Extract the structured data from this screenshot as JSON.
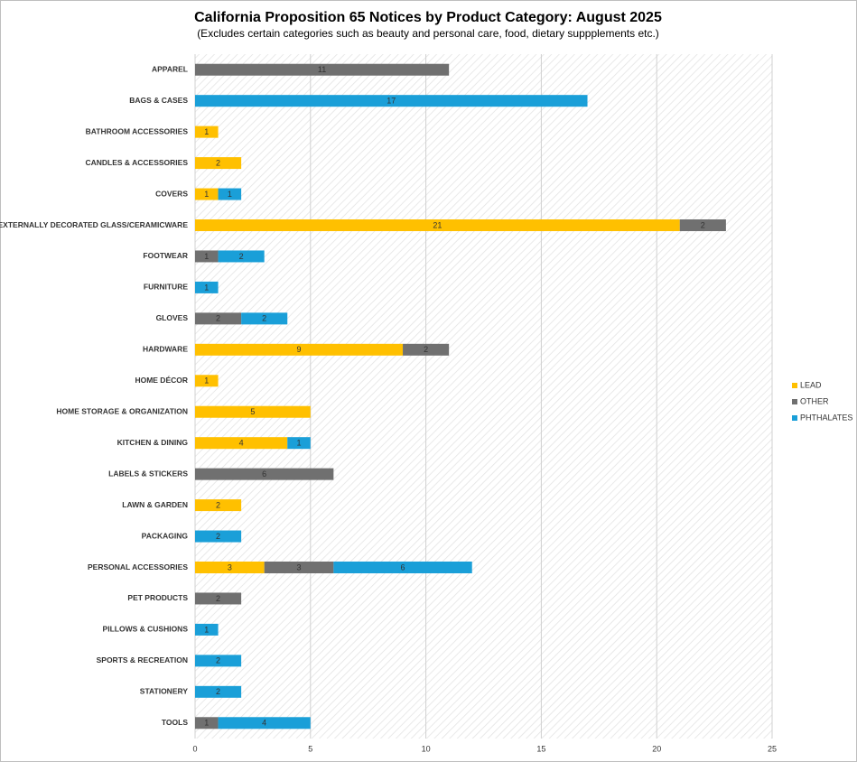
{
  "chart_data": {
    "type": "stacked_bar_horizontal",
    "title": "California Proposition 65 Notices by Product Category: August 2025",
    "subtitle": "(Excludes certain categories such as beauty and personal care, food, dietary suppplements etc.)",
    "categories": [
      "APPAREL",
      "BAGS & CASES",
      "BATHROOM ACCESSORIES",
      "CANDLES & ACCESSORIES",
      "COVERS",
      "EXTERNALLY DECORATED GLASS/CERAMICWARE",
      "FOOTWEAR",
      "FURNITURE",
      "GLOVES",
      "HARDWARE",
      "HOME DÉCOR",
      "HOME STORAGE & ORGANIZATION",
      "KITCHEN & DINING",
      "LABELS & STICKERS",
      "LAWN & GARDEN",
      "PACKAGING",
      "PERSONAL ACCESSORIES",
      "PET PRODUCTS",
      "PILLOWS & CUSHIONS",
      "SPORTS & RECREATION",
      "STATIONERY",
      "TOOLS"
    ],
    "series": [
      {
        "name": "LEAD",
        "color": "#FFC000",
        "values": [
          null,
          null,
          1,
          2,
          1,
          21,
          null,
          null,
          null,
          9,
          1,
          5,
          4,
          null,
          2,
          null,
          3,
          null,
          null,
          null,
          null,
          null
        ]
      },
      {
        "name": "OTHER",
        "color": "#707070",
        "values": [
          11,
          null,
          null,
          null,
          null,
          2,
          1,
          null,
          2,
          2,
          null,
          null,
          null,
          6,
          null,
          null,
          3,
          2,
          null,
          null,
          null,
          1
        ]
      },
      {
        "name": "PHTHALATES",
        "color": "#1A9FD8",
        "values": [
          null,
          17,
          null,
          null,
          1,
          null,
          2,
          1,
          2,
          null,
          null,
          null,
          1,
          null,
          null,
          2,
          6,
          null,
          1,
          2,
          2,
          4
        ]
      }
    ],
    "xlim": [
      0,
      25
    ],
    "xticks": [
      0,
      5,
      10,
      15,
      20,
      25
    ],
    "grid": true,
    "legend": "right"
  }
}
